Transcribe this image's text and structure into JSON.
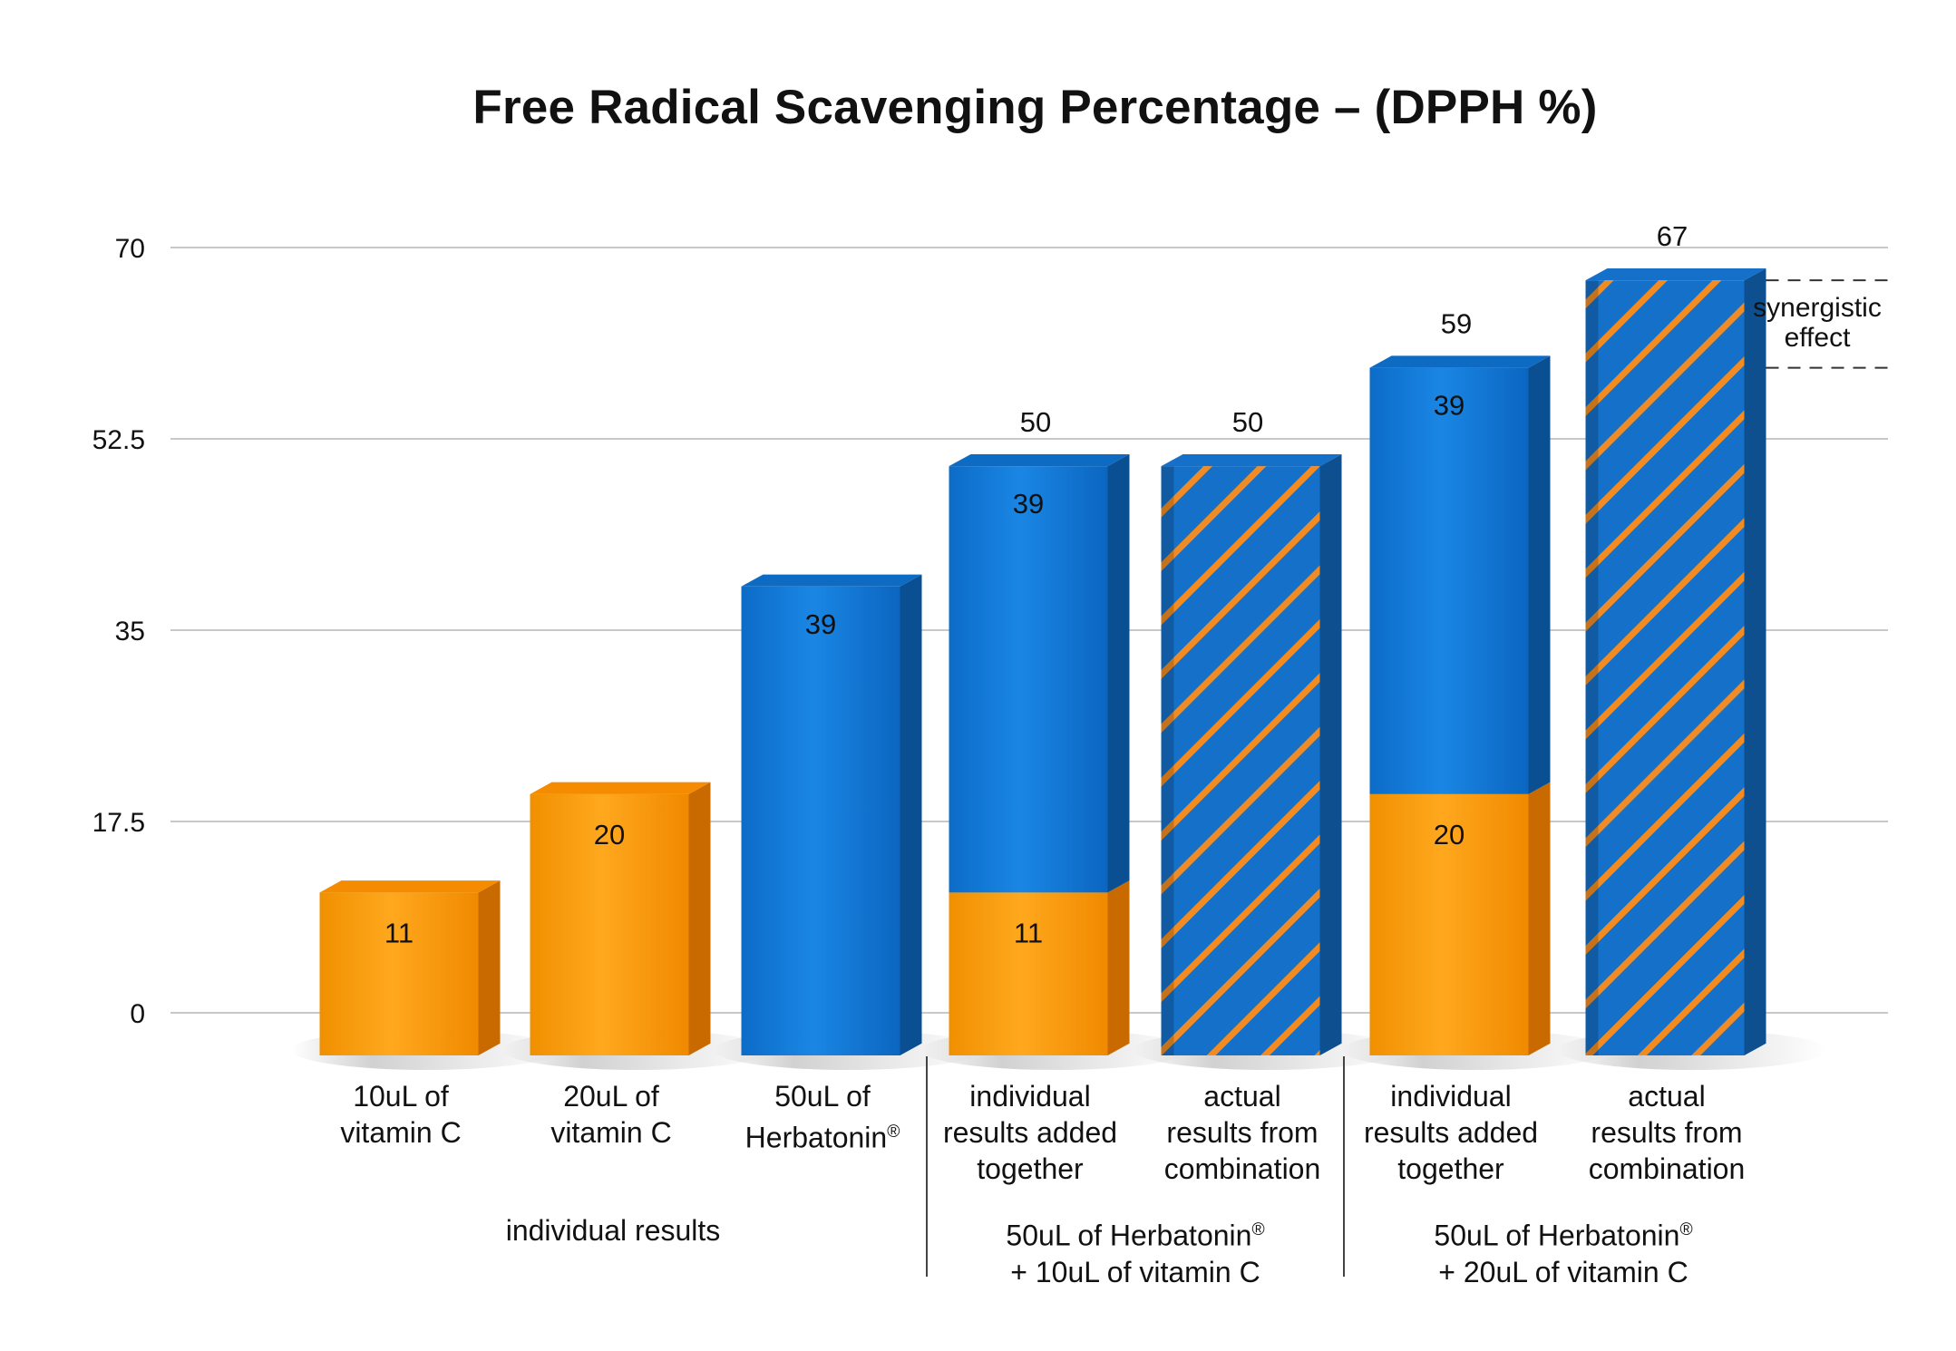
{
  "chart_data": {
    "type": "bar",
    "title": "Free Radical Scavenging Percentage – (DPPH %)",
    "xlabel": "",
    "ylabel": "",
    "ylim": [
      0,
      70
    ],
    "yticks": [
      "0",
      "17.5",
      "35",
      "52.5",
      "70"
    ],
    "grid": true,
    "legend": "none",
    "categories": [
      "10uL of\nvitamin C",
      "20uL of\nvitamin C",
      "50uL of\nHerbatonin®",
      "individual\nresults added\ntogether",
      "actual\nresults from\ncombination",
      "individual\nresults added\ntogether",
      "actual\nresults from\ncombination"
    ],
    "groups": [
      {
        "label": "individual results",
        "categories": [
          0,
          1,
          2
        ]
      },
      {
        "label": "50uL of Herbatonin®\n+ 10uL of vitamin C",
        "categories": [
          3,
          4
        ]
      },
      {
        "label": "50uL of Herbatonin®\n+ 20uL of vitamin C",
        "categories": [
          5,
          6
        ]
      }
    ],
    "bars": [
      {
        "segments": [
          {
            "value": 11,
            "fill": "orange",
            "label": "11"
          }
        ],
        "total_label": ""
      },
      {
        "segments": [
          {
            "value": 20,
            "fill": "orange",
            "label": "20"
          }
        ],
        "total_label": ""
      },
      {
        "segments": [
          {
            "value": 39,
            "fill": "blue",
            "label": "39"
          }
        ],
        "total_label": ""
      },
      {
        "segments": [
          {
            "value": 11,
            "fill": "orange",
            "label": "11"
          },
          {
            "value": 39,
            "fill": "blue",
            "label": "39"
          }
        ],
        "total_label": "50"
      },
      {
        "segments": [
          {
            "value": 50,
            "fill": "hatched",
            "label": ""
          }
        ],
        "total_label": "50"
      },
      {
        "segments": [
          {
            "value": 20,
            "fill": "orange",
            "label": "20"
          },
          {
            "value": 39,
            "fill": "blue",
            "label": "39"
          }
        ],
        "total_label": "59"
      },
      {
        "segments": [
          {
            "value": 67,
            "fill": "hatched",
            "label": ""
          }
        ],
        "total_label": "67"
      }
    ],
    "annotation": {
      "text": "synergistic\neffect",
      "from": 59,
      "to": 67
    }
  },
  "colors": {
    "orange": "#f7960b",
    "blue": "#1479d6",
    "hatch_stripe": "#f28c22",
    "grid": "#c8c8c8",
    "separator": "#444444"
  }
}
